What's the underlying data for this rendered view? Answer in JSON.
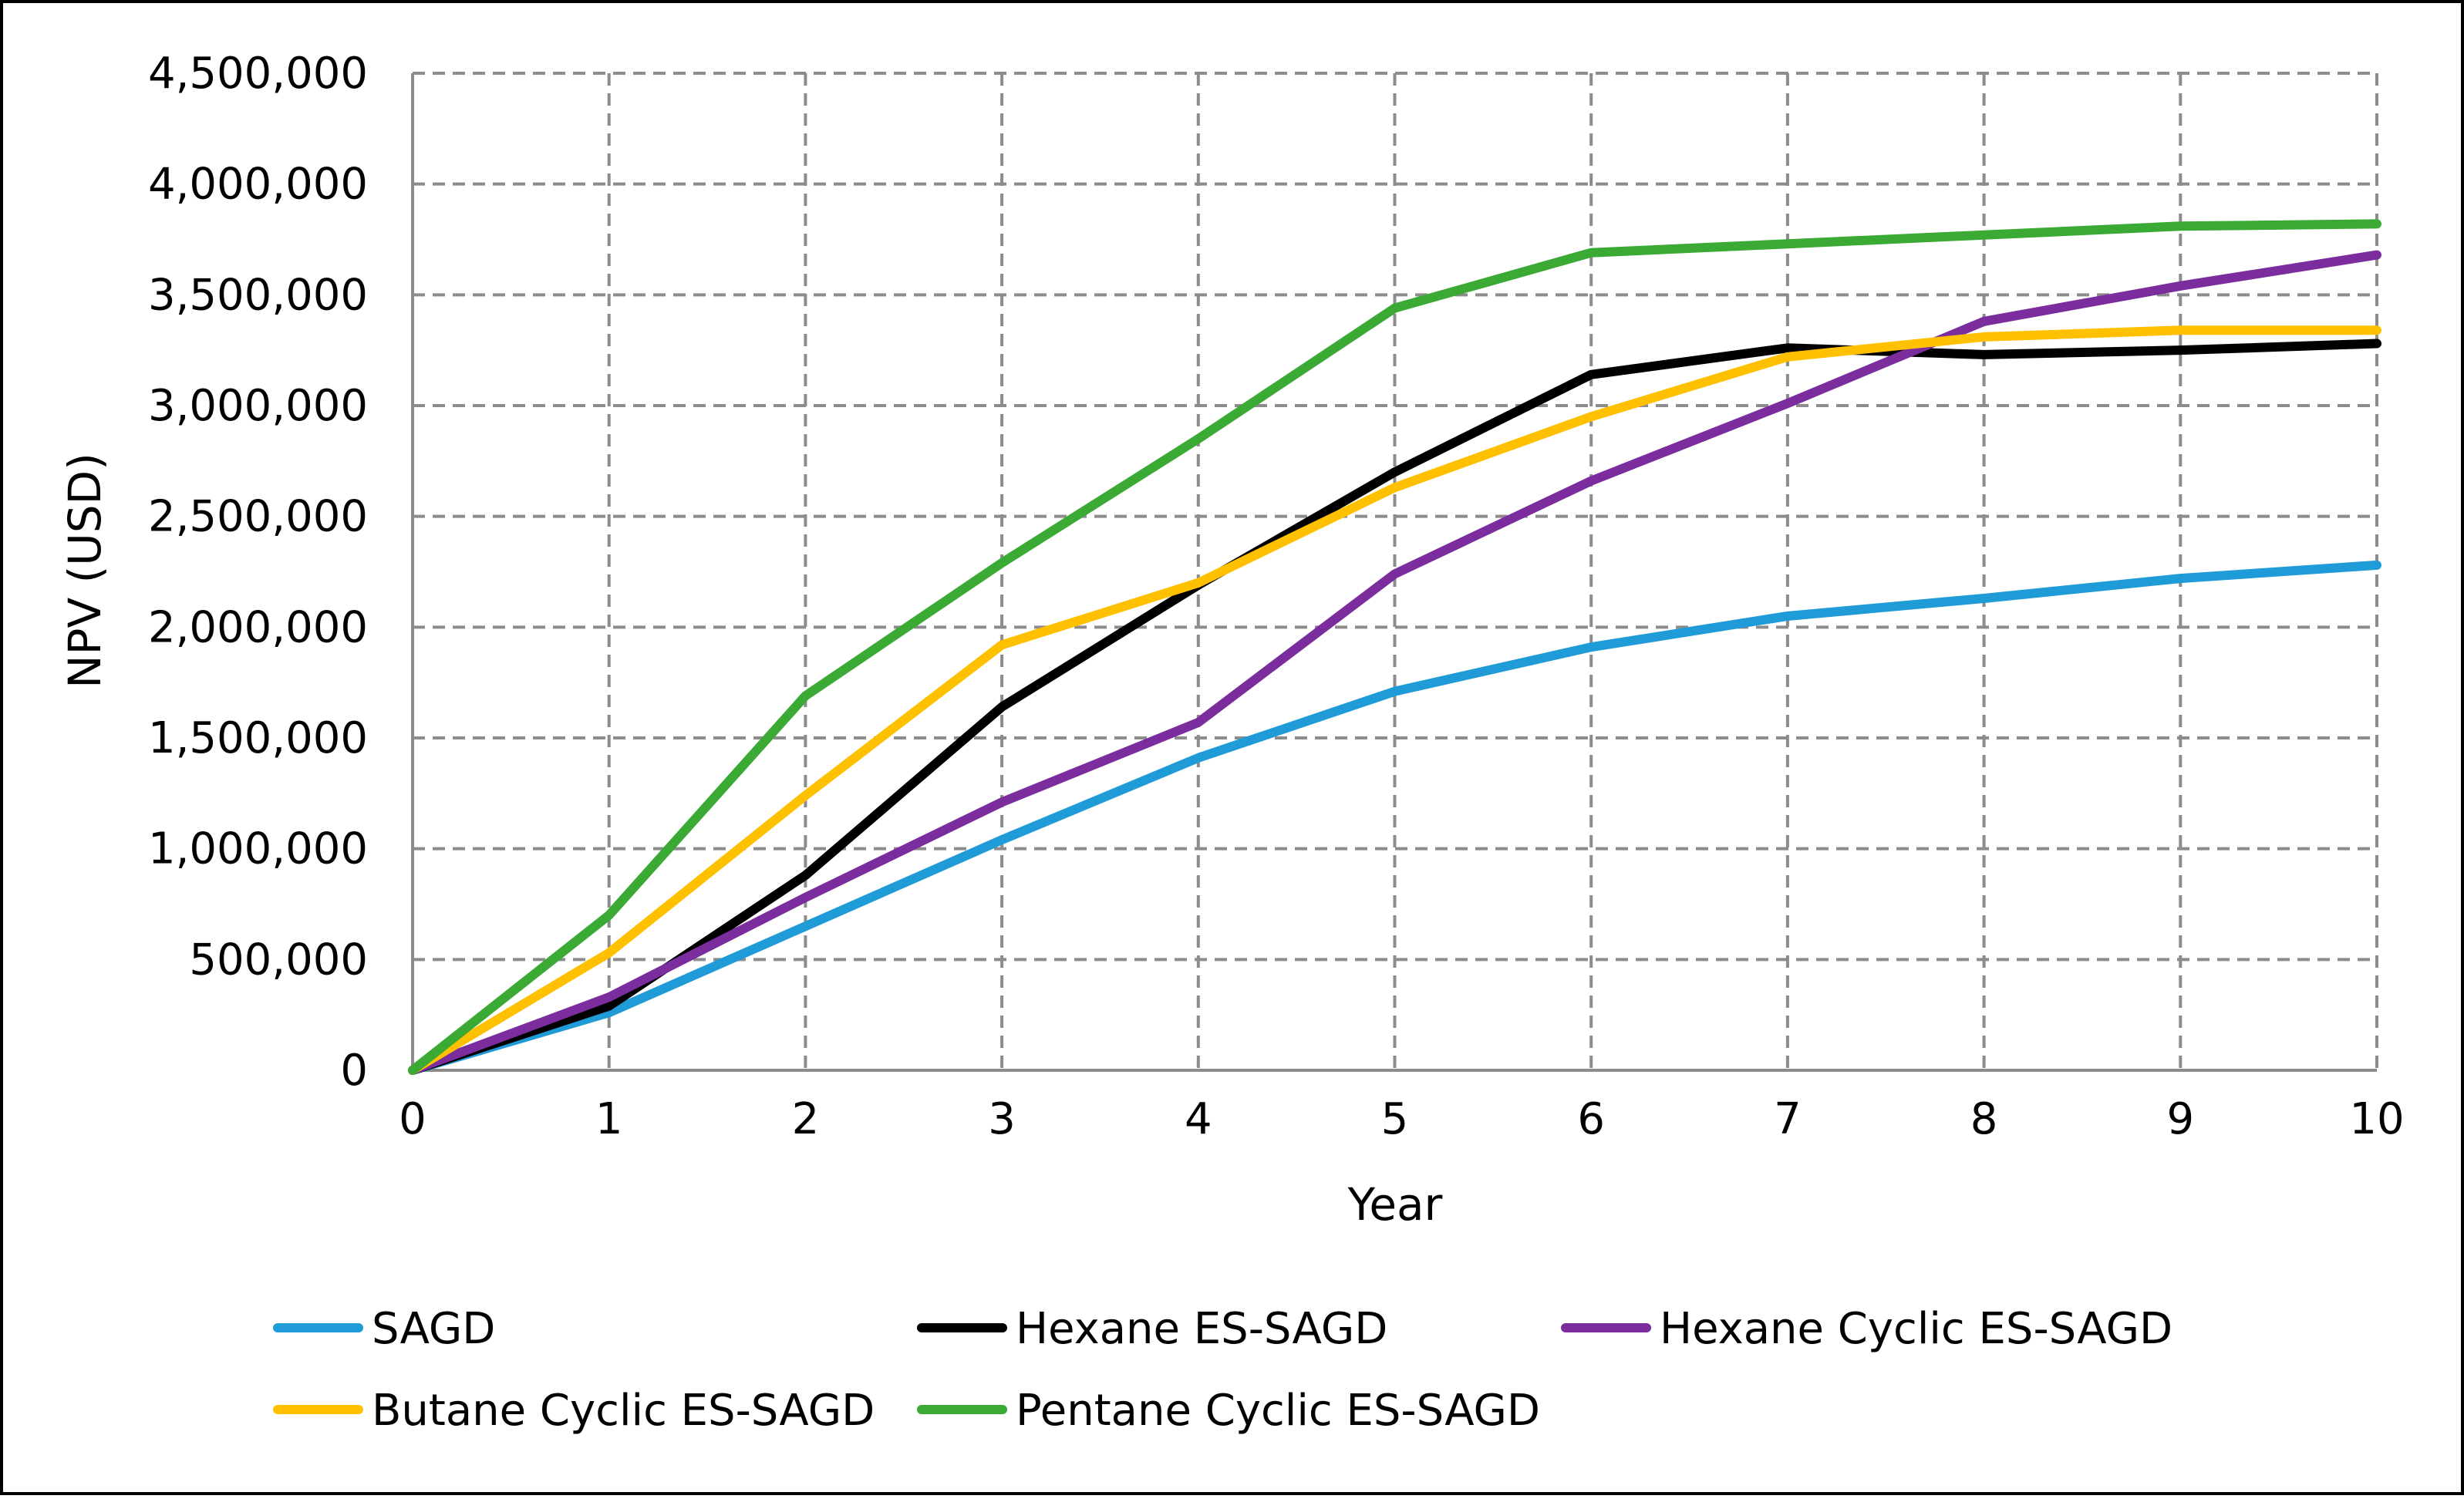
{
  "chart_data": {
    "type": "line",
    "title": "",
    "xlabel": "Year",
    "ylabel": "NPV (USD)",
    "xlim": [
      0,
      10
    ],
    "ylim": [
      0,
      4500000
    ],
    "grid": true,
    "legend_position": "bottom",
    "x": [
      0,
      1,
      2,
      3,
      4,
      5,
      6,
      7,
      8,
      9,
      10
    ],
    "x_tick_labels": [
      "0",
      "1",
      "2",
      "3",
      "4",
      "5",
      "6",
      "7",
      "8",
      "9",
      "10"
    ],
    "y_ticks": [
      0,
      500000,
      1000000,
      1500000,
      2000000,
      2500000,
      3000000,
      3500000,
      4000000,
      4500000
    ],
    "y_tick_labels": [
      "0",
      "500,000",
      "1,000,000",
      "1,500,000",
      "2,000,000",
      "2,500,000",
      "3,000,000",
      "3,500,000",
      "4,000,000",
      "4,500,000"
    ],
    "series": [
      {
        "name": "SAGD",
        "color": "#1F9BD7",
        "values": [
          0,
          260000,
          650000,
          1040000,
          1410000,
          1710000,
          1910000,
          2050000,
          2130000,
          2220000,
          2280000
        ]
      },
      {
        "name": "Hexane ES-SAGD",
        "color": "#000000",
        "values": [
          0,
          290000,
          880000,
          1640000,
          2190000,
          2700000,
          3140000,
          3260000,
          3230000,
          3250000,
          3280000
        ]
      },
      {
        "name": "Hexane Cyclic ES-SAGD",
        "color": "#7B2D9E",
        "values": [
          0,
          330000,
          780000,
          1210000,
          1570000,
          2240000,
          2660000,
          3010000,
          3380000,
          3540000,
          3680000
        ]
      },
      {
        "name": "Butane Cyclic ES-SAGD",
        "color": "#FFC000",
        "values": [
          0,
          530000,
          1240000,
          1920000,
          2200000,
          2630000,
          2950000,
          3220000,
          3310000,
          3340000,
          3340000
        ]
      },
      {
        "name": "Pentane Cyclic ES-SAGD",
        "color": "#3AAA35",
        "values": [
          0,
          700000,
          1690000,
          2290000,
          2850000,
          3440000,
          3690000,
          3730000,
          3770000,
          3810000,
          3820000
        ]
      }
    ]
  }
}
